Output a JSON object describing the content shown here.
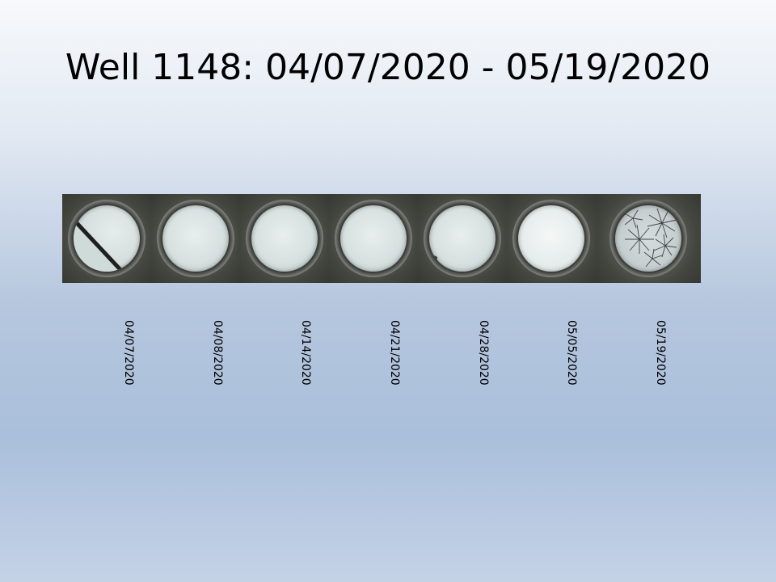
{
  "slide": {
    "title": "Well 1148: 04/07/2020 - 05/19/2020"
  },
  "images": [
    {
      "date": "04/07/2020"
    },
    {
      "date": "04/08/2020"
    },
    {
      "date": "04/14/2020"
    },
    {
      "date": "04/21/2020"
    },
    {
      "date": "04/28/2020"
    },
    {
      "date": "05/05/2020"
    },
    {
      "date": "05/19/2020"
    }
  ]
}
